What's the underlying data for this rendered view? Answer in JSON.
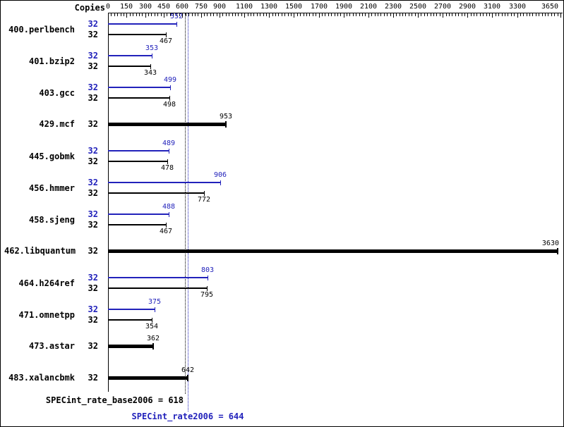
{
  "chart_data": {
    "type": "bar",
    "orientation": "horizontal",
    "copies_header": "Copies",
    "axis": {
      "max": 3650,
      "minor_tick_step": 25,
      "ticks_labeled": [
        0,
        150,
        300,
        450,
        600,
        750,
        900,
        1100,
        1300,
        1500,
        1700,
        1900,
        2100,
        2300,
        2500,
        2700,
        2900,
        3100,
        3300,
        3650
      ]
    },
    "benchmarks": [
      {
        "name": "400.perlbench",
        "copies": 32,
        "peak": 552,
        "base": 467
      },
      {
        "name": "401.bzip2",
        "copies": 32,
        "peak": 353,
        "base": 343
      },
      {
        "name": "403.gcc",
        "copies": 32,
        "peak": 499,
        "base": 498
      },
      {
        "name": "429.mcf",
        "copies": 32,
        "single": 953
      },
      {
        "name": "445.gobmk",
        "copies": 32,
        "peak": 489,
        "base": 478
      },
      {
        "name": "456.hmmer",
        "copies": 32,
        "peak": 906,
        "base": 772
      },
      {
        "name": "458.sjeng",
        "copies": 32,
        "peak": 488,
        "base": 467
      },
      {
        "name": "462.libquantum",
        "copies": 32,
        "single": 3630
      },
      {
        "name": "464.h264ref",
        "copies": 32,
        "peak": 803,
        "base": 795
      },
      {
        "name": "471.omnetpp",
        "copies": 32,
        "peak": 375,
        "base": 354
      },
      {
        "name": "473.astar",
        "copies": 32,
        "single": 362
      },
      {
        "name": "483.xalancbmk",
        "copies": 32,
        "single": 642
      }
    ],
    "means": {
      "base_label": "SPECint_rate_base2006 = 618",
      "base_value": 618,
      "peak_label": "SPECint_rate2006 = 644",
      "peak_value": 644
    },
    "colors": {
      "peak": "#2222bb",
      "base": "#000000"
    }
  }
}
